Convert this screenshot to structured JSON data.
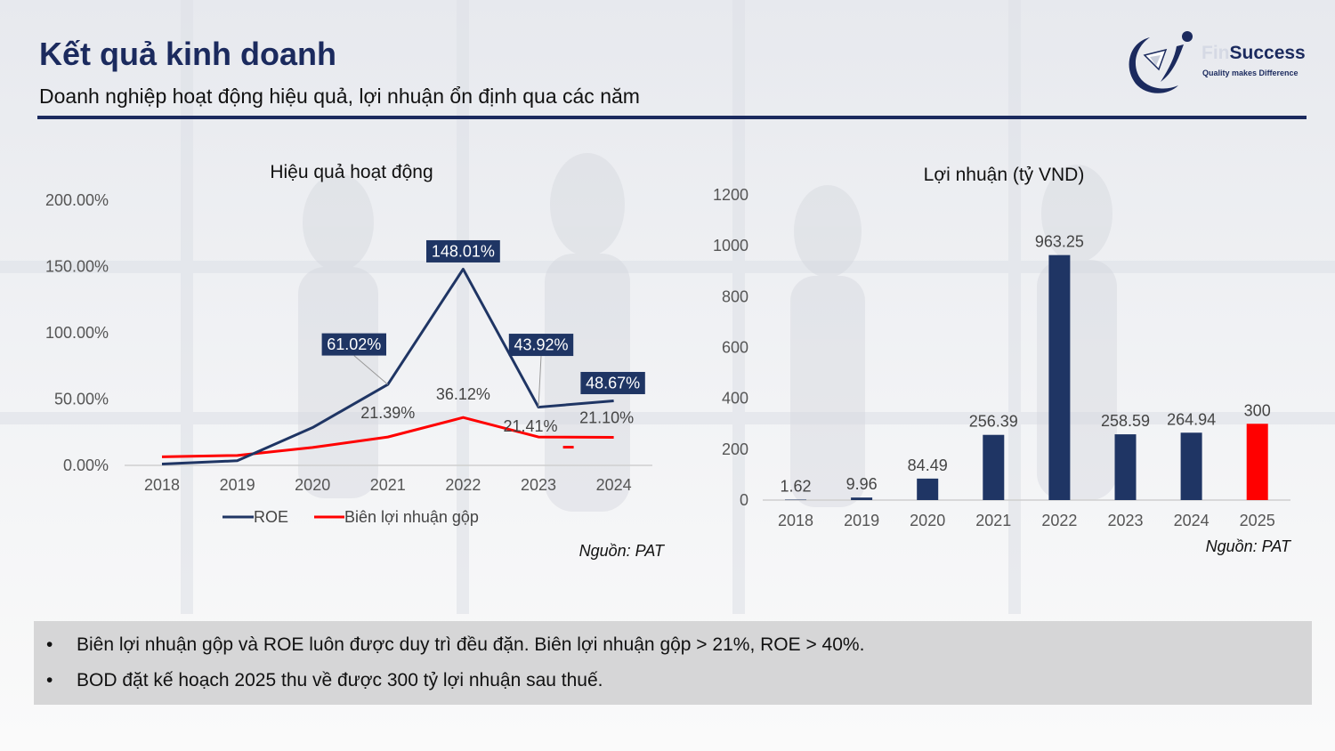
{
  "header": {
    "title": "Kết quả kinh doanh",
    "subtitle": "Doanh nghiệp hoạt động hiệu quả, lợi nhuận ổn định qua các năm"
  },
  "logo": {
    "name_prefix": "Fin",
    "name_main": "Success",
    "tagline": "Quality makes Difference",
    "icon": "runner-swoosh-logo"
  },
  "colors": {
    "navy": "#1f3564",
    "red": "#ff0000",
    "title": "#1b2a5e"
  },
  "chart_data": [
    {
      "type": "line",
      "title": "Hiệu quả hoạt động",
      "x": [
        "2018",
        "2019",
        "2020",
        "2021",
        "2022",
        "2023",
        "2024"
      ],
      "ylim": [
        0,
        200
      ],
      "yticks": [
        "0.00%",
        "50.00%",
        "100.00%",
        "150.00%",
        "200.00%"
      ],
      "grid": false,
      "legend": "bottom",
      "series": [
        {
          "name": "ROE",
          "color": "#1f3564",
          "values": [
            1,
            3.5,
            28.5,
            61.02,
            148.01,
            43.92,
            48.67
          ],
          "labels": [
            "",
            "",
            "",
            "61.02%",
            "148.01%",
            "43.92%",
            "48.67%"
          ]
        },
        {
          "name": "Biên lợi nhuận gộp",
          "color": "#ff0000",
          "values": [
            6.5,
            7.5,
            13.5,
            21.39,
            36.12,
            21.41,
            21.1
          ],
          "labels": [
            "",
            "",
            "",
            "21.39%",
            "36.12%",
            "21.41%",
            "21.10%"
          ]
        }
      ],
      "source": "Nguồn: PAT"
    },
    {
      "type": "bar",
      "title": "Lợi nhuận (tỷ VND)",
      "categories": [
        "2018",
        "2019",
        "2020",
        "2021",
        "2022",
        "2023",
        "2024",
        "2025"
      ],
      "values": [
        1.62,
        9.96,
        84.49,
        256.39,
        963.25,
        258.59,
        264.94,
        300
      ],
      "labels": [
        "1.62",
        "9.96",
        "84.49",
        "256.39",
        "963.25",
        "258.59",
        "264.94",
        "300"
      ],
      "colors": [
        "#1f3564",
        "#1f3564",
        "#1f3564",
        "#1f3564",
        "#1f3564",
        "#1f3564",
        "#1f3564",
        "#ff0000"
      ],
      "ylim": [
        0,
        1200
      ],
      "yticks": [
        "0",
        "200",
        "400",
        "600",
        "800",
        "1000",
        "1200"
      ],
      "grid": false,
      "source": "Nguồn: PAT"
    }
  ],
  "notes": [
    "Biên lợi nhuận gộp và ROE luôn được duy trì đều đặn. Biên lợi nhuận gộp > 21%, ROE > 40%.",
    "BOD đặt kế hoạch 2025 thu về được 300 tỷ lợi nhuận sau thuế."
  ],
  "bullet": "•"
}
